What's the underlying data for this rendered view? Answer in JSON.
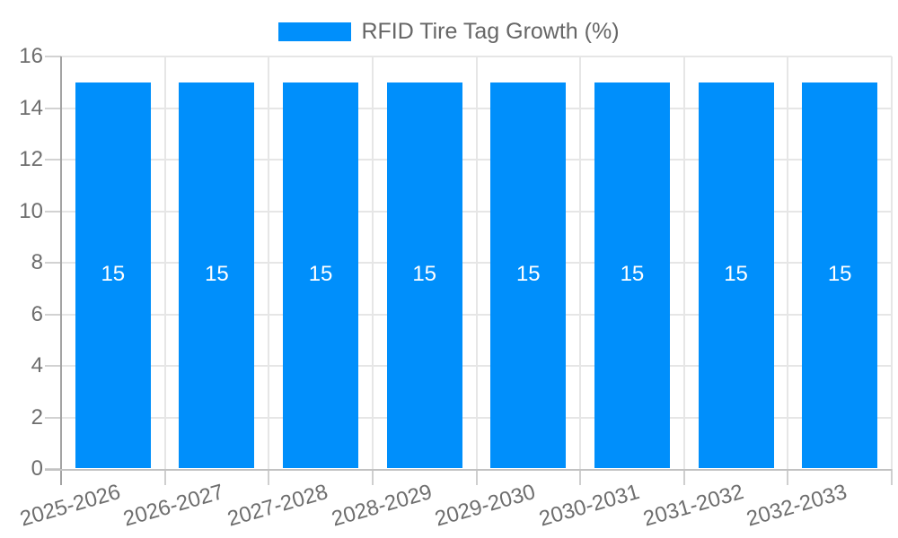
{
  "chart_data": {
    "type": "bar",
    "title": "",
    "legend": [
      {
        "label": "RFID Tire Tag Growth (%)",
        "color": "#008FFB"
      }
    ],
    "legend_position": "top",
    "categories": [
      "2025-2026",
      "2026-2027",
      "2027-2028",
      "2028-2029",
      "2029-2030",
      "2030-2031",
      "2031-2032",
      "2032-2033"
    ],
    "series": [
      {
        "name": "RFID Tire Tag Growth (%)",
        "values": [
          15,
          15,
          15,
          15,
          15,
          15,
          15,
          15
        ]
      }
    ],
    "data_labels": [
      "15",
      "15",
      "15",
      "15",
      "15",
      "15",
      "15",
      "15"
    ],
    "xlabel": "",
    "ylabel": "",
    "ylim": [
      0,
      16
    ],
    "yticks": [
      0,
      2,
      4,
      6,
      8,
      10,
      12,
      14,
      16
    ],
    "grid": true,
    "x_label_rotation": -16,
    "colors": {
      "bar": "#008FFB",
      "data_label": "#ffffff",
      "axis_text": "#6e6e6e",
      "legend_text": "#666666",
      "gridline": "#e6e6e6",
      "y_axis_line": "#a3a3a3",
      "x_axis_line": "#c2c2c2",
      "y_tick": "#d2d2d2",
      "x_tick": "#cfcfcf"
    }
  }
}
